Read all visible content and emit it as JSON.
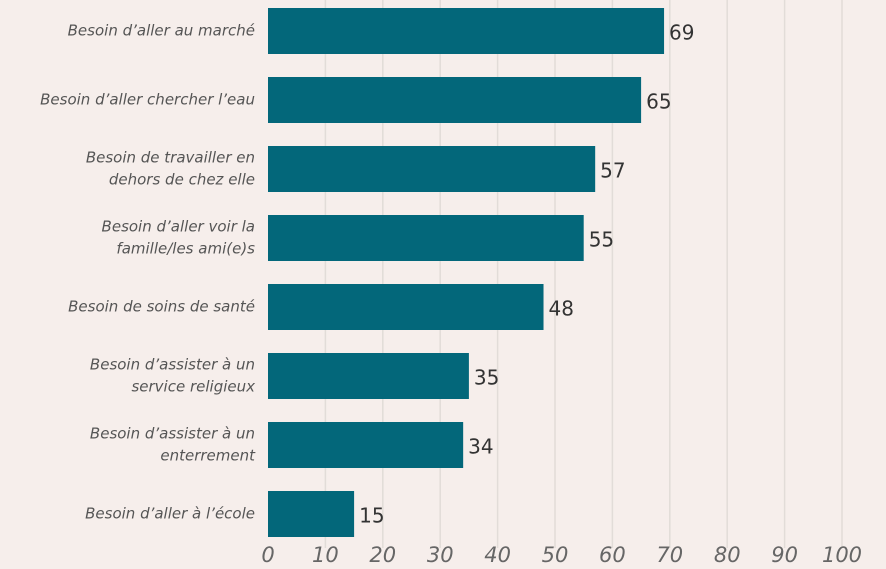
{
  "chart_data": {
    "type": "bar",
    "orientation": "horizontal",
    "categories": [
      [
        "Besoin d’aller au marché"
      ],
      [
        "Besoin d’aller chercher l’eau"
      ],
      [
        "Besoin de travailler en",
        "dehors de chez elle"
      ],
      [
        "Besoin d’aller voir la",
        "famille/les ami(e)s"
      ],
      [
        "Besoin de soins de santé"
      ],
      [
        "Besoin d’assister à un",
        "service religieux"
      ],
      [
        "Besoin d’assister à un",
        "enterrement"
      ],
      [
        "Besoin d’aller à l’école"
      ]
    ],
    "values": [
      69,
      65,
      57,
      55,
      48,
      35,
      34,
      15
    ],
    "color": "#03677a",
    "xlim": [
      0,
      100
    ],
    "xticks": [
      0,
      10,
      20,
      30,
      40,
      50,
      60,
      70,
      80,
      90,
      100
    ],
    "grid": true
  }
}
